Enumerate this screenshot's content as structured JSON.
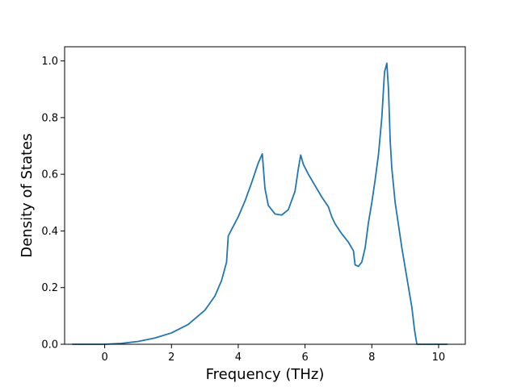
{
  "chart_data": {
    "type": "line",
    "title": "",
    "xlabel": "Frequency (THz)",
    "ylabel": "Density of States",
    "xlim": [
      -1.2,
      10.8
    ],
    "ylim": [
      0.0,
      1.05
    ],
    "xticks": [
      0,
      2,
      4,
      6,
      8,
      10
    ],
    "xtick_labels": [
      "0",
      "2",
      "4",
      "6",
      "8",
      "10"
    ],
    "yticks": [
      0.0,
      0.2,
      0.4,
      0.6,
      0.8,
      1.0
    ],
    "ytick_labels": [
      "0.0",
      "0.2",
      "0.4",
      "0.6",
      "0.8",
      "1.0"
    ],
    "grid": false,
    "legend": "none",
    "series": [
      {
        "color": "#1f77b4",
        "x": [
          -0.95,
          0.0,
          0.5,
          1.0,
          1.5,
          2.0,
          2.5,
          3.0,
          3.3,
          3.5,
          3.65,
          3.7,
          3.8,
          4.0,
          4.2,
          4.4,
          4.6,
          4.72,
          4.8,
          4.9,
          5.1,
          5.3,
          5.5,
          5.7,
          5.8,
          5.87,
          5.95,
          6.1,
          6.3,
          6.5,
          6.7,
          6.8,
          6.9,
          7.1,
          7.3,
          7.45,
          7.5,
          7.6,
          7.7,
          7.8,
          7.9,
          8.0,
          8.1,
          8.2,
          8.3,
          8.38,
          8.45,
          8.5,
          8.55,
          8.6,
          8.7,
          8.8,
          8.9,
          9.0,
          9.1,
          9.2,
          9.28,
          9.35,
          9.5,
          10.0,
          10.25
        ],
        "y": [
          0.0,
          0.0,
          0.003,
          0.01,
          0.022,
          0.04,
          0.07,
          0.12,
          0.17,
          0.225,
          0.29,
          0.382,
          0.405,
          0.45,
          0.505,
          0.57,
          0.64,
          0.672,
          0.55,
          0.49,
          0.46,
          0.456,
          0.475,
          0.54,
          0.62,
          0.668,
          0.635,
          0.6,
          0.56,
          0.52,
          0.485,
          0.45,
          0.425,
          0.39,
          0.36,
          0.33,
          0.28,
          0.275,
          0.29,
          0.34,
          0.43,
          0.5,
          0.58,
          0.67,
          0.8,
          0.96,
          0.992,
          0.9,
          0.72,
          0.62,
          0.5,
          0.42,
          0.34,
          0.27,
          0.2,
          0.13,
          0.05,
          0.0,
          0.0,
          0.0,
          0.0
        ]
      }
    ]
  }
}
